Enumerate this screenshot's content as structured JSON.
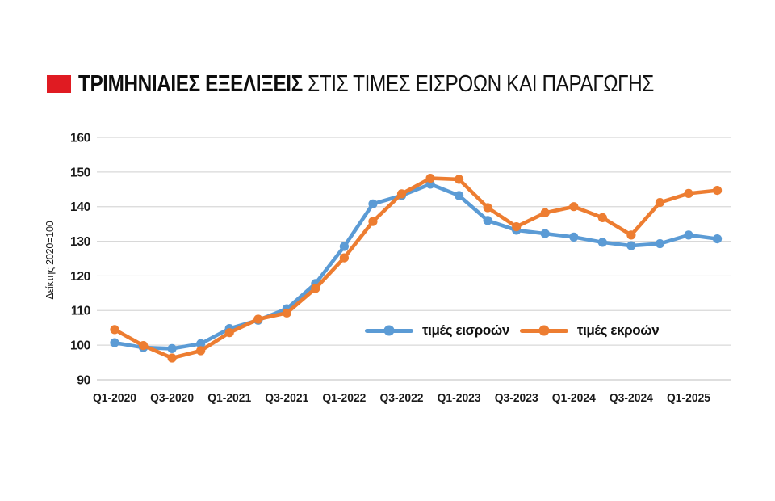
{
  "header": {
    "marker_color": "#e01b22",
    "title_bold": "ΤΡΙΜΗΝΙΑΙΕΣ ΕΞΕΛΙΞΕΙΣ",
    "title_regular": " ΣΤΙΣ ΤΙΜΕΣ ΕΙΣΡΟΩΝ ΚΑΙ ΠΑΡΑΓΩΓΗΣ"
  },
  "chart_data": {
    "type": "line",
    "ylabel": "Δείκτης 2020=100",
    "ylim": [
      90,
      160
    ],
    "y_ticks": [
      90,
      100,
      110,
      120,
      130,
      140,
      150,
      160
    ],
    "grid": "horizontal",
    "grid_color": "#d8d8d8",
    "axis_line_color": "#c9c9c9",
    "tick_label_color": "#1a1a1a",
    "legend_position": "inside-bottom-center",
    "categories": [
      "Q1-2020",
      "Q2-2020",
      "Q3-2020",
      "Q4-2020",
      "Q1-2021",
      "Q2-2021",
      "Q3-2021",
      "Q4-2021",
      "Q1-2022",
      "Q2-2022",
      "Q3-2022",
      "Q4-2022",
      "Q1-2023",
      "Q2-2023",
      "Q3-2023",
      "Q4-2023",
      "Q1-2024",
      "Q2-2024",
      "Q3-2024",
      "Q4-2024",
      "Q1-2025",
      "Q2-2025"
    ],
    "x_tick_labels": [
      "Q1-2020",
      "Q3-2020",
      "Q1-2021",
      "Q3-2021",
      "Q1-2022",
      "Q3-2022",
      "Q1-2023",
      "Q3-2023",
      "Q1-2024",
      "Q3-2024",
      "Q1-2025"
    ],
    "x_tick_every": 2,
    "series": [
      {
        "name": "τιμές εισροών",
        "color": "#5b9bd5",
        "values": [
          100.7,
          99.3,
          99.0,
          100.4,
          104.8,
          107.2,
          110.5,
          117.8,
          128.5,
          140.8,
          143.2,
          146.5,
          143.2,
          136.0,
          133.2,
          132.2,
          131.2,
          129.7,
          128.7,
          129.3,
          131.8,
          130.7
        ]
      },
      {
        "name": "τιμές εκροών",
        "color": "#ed7d31",
        "values": [
          104.5,
          99.9,
          96.3,
          98.4,
          103.6,
          107.5,
          109.3,
          116.4,
          125.2,
          135.7,
          143.7,
          148.2,
          147.9,
          139.7,
          134.2,
          138.2,
          140.0,
          136.8,
          131.8,
          141.2,
          143.8,
          144.7
        ]
      }
    ]
  }
}
